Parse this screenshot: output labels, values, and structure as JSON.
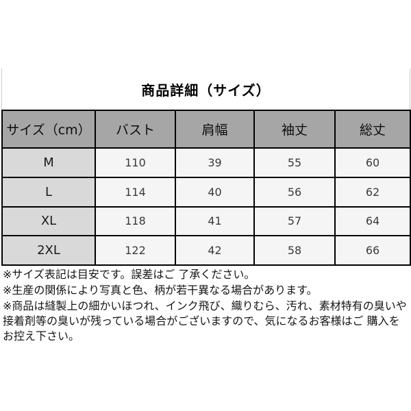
{
  "title": "商品詳細（サイズ）",
  "size_table": {
    "columns": [
      "サイズ（cm）",
      "バスト",
      "肩幅",
      "袖丈",
      "総丈"
    ],
    "rows": [
      {
        "size": "M",
        "values": [
          "110",
          "39",
          "55",
          "60"
        ]
      },
      {
        "size": "L",
        "values": [
          "114",
          "40",
          "56",
          "62"
        ]
      },
      {
        "size": "XL",
        "values": [
          "118",
          "41",
          "57",
          "64"
        ]
      },
      {
        "size": "2XL",
        "values": [
          "122",
          "42",
          "58",
          "66"
        ]
      }
    ],
    "colors": {
      "header_bg": "#a6a6a6",
      "size_column_bg": "#d9d9d9",
      "value_cell_bg": "#f5f5f5",
      "border": "#000000"
    }
  },
  "notes": [
    "※サイズ表記は目安です。誤差はご 了承ください。",
    "※生産の関係により写真と色、柄が若干異なる場合があります。",
    "※商品は縫製上の細かいほつれ、インク飛び、織りむら、汚れ、素材特有の臭いや接着剤等の臭いが残っている場合がございますので、気になるお客様はご 購入をお控え下さい。"
  ],
  "chart_data": {
    "type": "table",
    "title": "商品詳細（サイズ）",
    "columns": [
      "サイズ（cm）",
      "バスト",
      "肩幅",
      "袖丈",
      "総丈"
    ],
    "rows": [
      [
        "M",
        110,
        39,
        55,
        60
      ],
      [
        "L",
        114,
        40,
        56,
        62
      ],
      [
        "XL",
        118,
        41,
        57,
        64
      ],
      [
        "2XL",
        122,
        42,
        58,
        66
      ]
    ]
  }
}
